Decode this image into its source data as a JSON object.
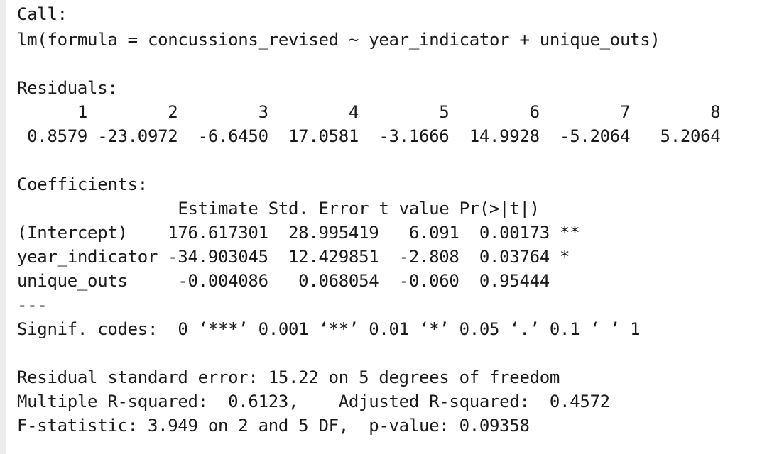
{
  "console": {
    "call_header": "Call:",
    "call_formula": "lm(formula = concussions_revised ~ year_indicator + unique_outs)",
    "residuals_header": "Residuals:",
    "residuals_index_line": "      1        2        3        4        5        6        7        8",
    "residuals_value_line": " 0.8579 -23.0972  -6.6450  17.0581  -3.1666  14.9928  -5.2064   5.2064",
    "coefficients_header": "Coefficients:",
    "coef_column_header": "                Estimate Std. Error t value Pr(>|t|)",
    "coef_rows": [
      "(Intercept)    176.617301  28.995419   6.091  0.00173 **",
      "year_indicator -34.903045  12.429851  -2.808  0.03764 *",
      "unique_outs     -0.004086   0.068054  -0.060  0.95444"
    ],
    "separator": "---",
    "signif_codes": "Signif. codes:  0 ‘***’ 0.001 ‘**’ 0.01 ‘*’ 0.05 ‘.’ 0.1 ‘ ’ 1",
    "residual_std_error": "Residual standard error: 15.22 on 5 degrees of freedom",
    "r_squared": "Multiple R-squared:  0.6123,\tAdjusted R-squared:  0.4572",
    "f_statistic": "F-statistic: 3.949 on 2 and 5 DF,  p-value: 0.09358"
  },
  "colors": {
    "background": "#ffffff",
    "text": "#1a1a1a",
    "left_gutter": "#ececec"
  }
}
